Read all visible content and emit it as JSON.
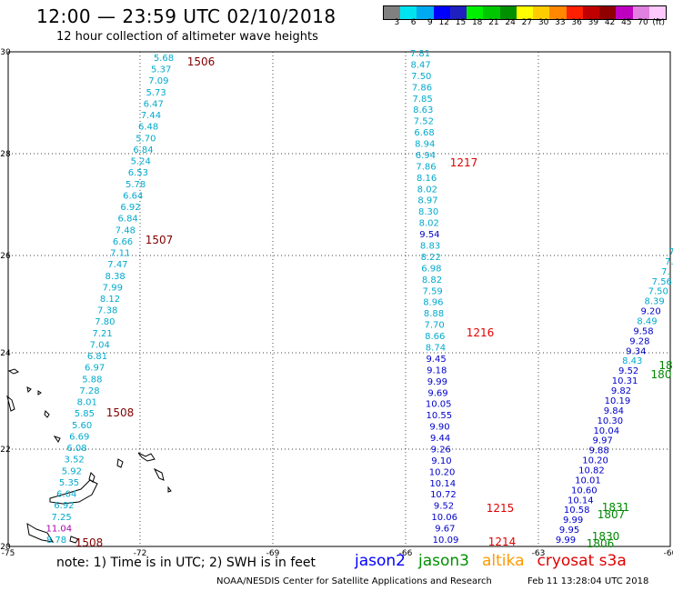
{
  "title": "12:00 — 23:59 UTC 02/10/2018",
  "subtitle": "12 hour collection of altimeter wave heights",
  "colorbar": {
    "colors": [
      "#808080",
      "#00e4f0",
      "#00aaf0",
      "#0000ff",
      "#2020c0",
      "#00f000",
      "#00c800",
      "#009000",
      "#ffff00",
      "#ffcc00",
      "#ff8800",
      "#ff2000",
      "#c00000",
      "#900000",
      "#c000c0",
      "#e080e0",
      "#ffc8ff"
    ],
    "labels": [
      "3",
      "6",
      "9",
      "12",
      "15",
      "18",
      "21",
      "24",
      "27",
      "30",
      "33",
      "36",
      "39",
      "42",
      "45",
      "70",
      "(ft)"
    ]
  },
  "axes": {
    "x_ticks": [
      "-75",
      "-72",
      "-69",
      "-66",
      "-63",
      "-60"
    ],
    "y_ticks": [
      "30",
      "28",
      "26",
      "24",
      "22",
      "20"
    ]
  },
  "tracks": [
    {
      "id": "t1",
      "values": [
        "5.68",
        "5.37",
        "7.09",
        "5.73",
        "6.47",
        "7.44",
        "6.48",
        "5.70",
        "6.84",
        "5.24",
        "6.53",
        "5.78",
        "6.64",
        "6.92",
        "6.84",
        "7.48",
        "6.66",
        "7.11",
        "7.47",
        "8.38",
        "7.99",
        "8.12",
        "7.38",
        "7.80",
        "7.21",
        "7.04",
        "6.81",
        "6.97",
        "5.88",
        "7.28",
        "8.01",
        "5.85",
        "5.60",
        "6.69",
        "6.08",
        "3.52",
        "5.92",
        "5.35",
        "6.04",
        "6.92",
        "7.25",
        "11.04",
        "8.78"
      ],
      "colors": [
        "c",
        "c",
        "c",
        "c",
        "c",
        "c",
        "c",
        "c",
        "c",
        "c",
        "c",
        "c",
        "c",
        "c",
        "c",
        "c",
        "c",
        "c",
        "c",
        "c",
        "c",
        "c",
        "c",
        "c",
        "c",
        "c",
        "c",
        "c",
        "c",
        "c",
        "c",
        "c",
        "c",
        "c",
        "c",
        "c",
        "c",
        "c",
        "c",
        "c",
        "c",
        "m",
        "c"
      ]
    },
    {
      "id": "t2",
      "values": [
        "7.81",
        "8.47",
        "7.50",
        "7.86",
        "7.85",
        "8.63",
        "7.52",
        "6.68",
        "8.94",
        "6.94",
        "7.86",
        "8.16",
        "8.02",
        "8.97",
        "8.30",
        "8.02",
        "9.54",
        "8.83",
        "8.22",
        "6.98",
        "8.82",
        "7.59",
        "8.96",
        "8.88",
        "7.70",
        "8.66",
        "8.74",
        "9.45",
        "9.18",
        "9.99",
        "9.69",
        "10.05",
        "10.55",
        "9.90",
        "9.44",
        "9.26",
        "9.10",
        "10.20",
        "10.14",
        "10.72",
        "9.52",
        "10.06",
        "9.67",
        "10.09"
      ],
      "colors": [
        "c",
        "c",
        "c",
        "c",
        "c",
        "c",
        "c",
        "c",
        "c",
        "c",
        "c",
        "c",
        "c",
        "c",
        "c",
        "c",
        "b",
        "c",
        "c",
        "c",
        "c",
        "c",
        "c",
        "c",
        "c",
        "c",
        "c",
        "b",
        "b",
        "b",
        "b",
        "b",
        "b",
        "b",
        "b",
        "b",
        "b",
        "b",
        "b",
        "b",
        "b",
        "b",
        "b",
        "b"
      ]
    },
    {
      "id": "t3",
      "values": [
        "7.",
        "7.",
        "7.",
        "7.56",
        "7.50",
        "8.39",
        "9.20",
        "8.49",
        "9.58",
        "9.28",
        "9.34",
        "8.43",
        "9.52",
        "10.31",
        "9.82",
        "10.19",
        "9.84",
        "10.30",
        "10.04",
        "9.97",
        "9.88",
        "10.20",
        "10.82",
        "10.01",
        "10.60",
        "10.14",
        "10.58",
        "9.99",
        "9.95",
        "9.99"
      ],
      "colors": [
        "c",
        "c",
        "c",
        "c",
        "c",
        "c",
        "b",
        "c",
        "b",
        "b",
        "b",
        "c",
        "b",
        "b",
        "b",
        "b",
        "b",
        "b",
        "b",
        "b",
        "b",
        "b",
        "b",
        "b",
        "b",
        "b",
        "b",
        "b",
        "b",
        "b"
      ]
    }
  ],
  "time_labels": [
    {
      "text": "1506",
      "color": "#800000"
    },
    {
      "text": "1507",
      "color": "#800000"
    },
    {
      "text": "1508",
      "color": "#800000"
    },
    {
      "text": "1508",
      "color": "#800000"
    },
    {
      "text": "1217",
      "color": "#e00000"
    },
    {
      "text": "1216",
      "color": "#e00000"
    },
    {
      "text": "1215",
      "color": "#e00000"
    },
    {
      "text": "1214",
      "color": "#e00000"
    },
    {
      "text": "18",
      "color": "#008800"
    },
    {
      "text": "180",
      "color": "#008800"
    },
    {
      "text": "1831",
      "color": "#008800"
    },
    {
      "text": "1807",
      "color": "#008800"
    },
    {
      "text": "1830",
      "color": "#008800"
    },
    {
      "text": "1806",
      "color": "#008800"
    }
  ],
  "note": "note: 1) Time is in UTC; 2) SWH is in feet",
  "legend": [
    {
      "name": "jason2",
      "color": "#0000ff"
    },
    {
      "name": "jason3",
      "color": "#009000"
    },
    {
      "name": "altika",
      "color": "#ff9900"
    },
    {
      "name": "cryosat s3a",
      "color": "#e00000"
    }
  ],
  "credit": "NOAA/NESDIS Center for Satellite Applications and Research",
  "timestamp": "Feb 11 13:28:04 UTC 2018"
}
